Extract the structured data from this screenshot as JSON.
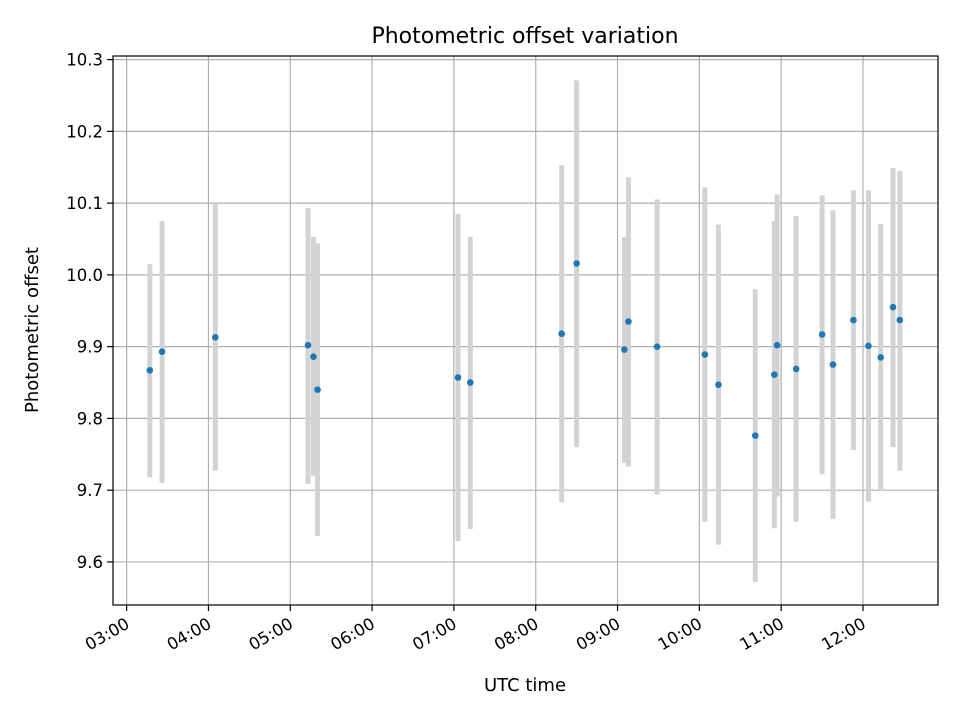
{
  "chart_data": {
    "type": "scatter",
    "title": "Photometric offset variation",
    "xlabel": "UTC time",
    "ylabel": "Photometric offset",
    "xlim": [
      "02:50",
      "12:55"
    ],
    "ylim": [
      9.54,
      10.305
    ],
    "grid": true,
    "x_ticks": [
      "03:00",
      "04:00",
      "05:00",
      "06:00",
      "07:00",
      "08:00",
      "09:00",
      "10:00",
      "11:00",
      "12:00"
    ],
    "y_ticks": [
      "9.6",
      "9.7",
      "9.8",
      "9.9",
      "10.0",
      "10.1",
      "10.2",
      "10.3"
    ],
    "point_color": "#1f77b4",
    "errorbar_color": "#d3d3d3",
    "series": [
      {
        "points": [
          {
            "x": "03:17",
            "y": 9.867,
            "lo": 9.718,
            "hi": 10.015
          },
          {
            "x": "03:26",
            "y": 9.893,
            "lo": 9.71,
            "hi": 10.075
          },
          {
            "x": "04:05",
            "y": 9.913,
            "lo": 9.727,
            "hi": 10.1
          },
          {
            "x": "05:13",
            "y": 9.902,
            "lo": 9.709,
            "hi": 10.093
          },
          {
            "x": "05:17",
            "y": 9.886,
            "lo": 9.72,
            "hi": 10.053
          },
          {
            "x": "05:20",
            "y": 9.84,
            "lo": 9.636,
            "hi": 10.044
          },
          {
            "x": "07:03",
            "y": 9.857,
            "lo": 9.629,
            "hi": 10.085
          },
          {
            "x": "07:12",
            "y": 9.85,
            "lo": 9.646,
            "hi": 10.053
          },
          {
            "x": "08:19",
            "y": 9.918,
            "lo": 9.683,
            "hi": 10.153
          },
          {
            "x": "08:30",
            "y": 10.016,
            "lo": 9.76,
            "hi": 10.271
          },
          {
            "x": "09:05",
            "y": 9.896,
            "lo": 9.738,
            "hi": 10.053
          },
          {
            "x": "09:08",
            "y": 9.935,
            "lo": 9.733,
            "hi": 10.136
          },
          {
            "x": "09:29",
            "y": 9.9,
            "lo": 9.694,
            "hi": 10.105
          },
          {
            "x": "10:04",
            "y": 9.889,
            "lo": 9.656,
            "hi": 10.122
          },
          {
            "x": "10:14",
            "y": 9.847,
            "lo": 9.624,
            "hi": 10.07
          },
          {
            "x": "10:41",
            "y": 9.776,
            "lo": 9.572,
            "hi": 9.98
          },
          {
            "x": "10:55",
            "y": 9.861,
            "lo": 9.647,
            "hi": 10.075
          },
          {
            "x": "10:57",
            "y": 9.902,
            "lo": 9.691,
            "hi": 10.112
          },
          {
            "x": "11:11",
            "y": 9.869,
            "lo": 9.656,
            "hi": 10.082
          },
          {
            "x": "11:30",
            "y": 9.917,
            "lo": 9.722,
            "hi": 10.111
          },
          {
            "x": "11:38",
            "y": 9.875,
            "lo": 9.66,
            "hi": 10.09
          },
          {
            "x": "11:53",
            "y": 9.937,
            "lo": 9.756,
            "hi": 10.118
          },
          {
            "x": "12:04",
            "y": 9.901,
            "lo": 9.684,
            "hi": 10.118
          },
          {
            "x": "12:13",
            "y": 9.885,
            "lo": 9.699,
            "hi": 10.071
          },
          {
            "x": "12:22",
            "y": 9.955,
            "lo": 9.76,
            "hi": 10.149
          },
          {
            "x": "12:27",
            "y": 9.937,
            "lo": 9.727,
            "hi": 10.145
          }
        ]
      }
    ]
  }
}
